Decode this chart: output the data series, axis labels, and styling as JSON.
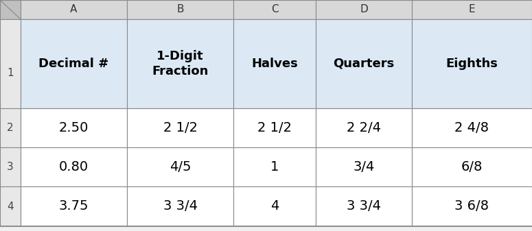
{
  "col_headers": [
    "A",
    "B",
    "C",
    "D",
    "E"
  ],
  "header_row": [
    "Decimal #",
    "1-Digit\nFraction",
    "Halves",
    "Quarters",
    "Eighths"
  ],
  "data_rows": [
    [
      "2.50",
      "2 1/2",
      "2 1/2",
      "2 2/4",
      "2 4/8"
    ],
    [
      "0.80",
      "4/5",
      "1",
      "3/4",
      "6/8"
    ],
    [
      "3.75",
      "3 3/4",
      "4",
      "3 3/4",
      "3 6/8"
    ]
  ],
  "row_numbers": [
    "1",
    "2",
    "3",
    "4"
  ],
  "header_bg": "#dce9f5",
  "data_bg": "#ffffff",
  "row_header_bg": "#e8e8e8",
  "col_header_bg": "#d8d8d8",
  "corner_bg": "#c0c0c0",
  "grid_color": "#888888",
  "text_color": "#000000",
  "fig_width": 7.75,
  "fig_height": 3.37,
  "col_letter_fontsize": 11,
  "row_num_fontsize": 11,
  "header_fontsize": 13,
  "data_fontsize": 14
}
